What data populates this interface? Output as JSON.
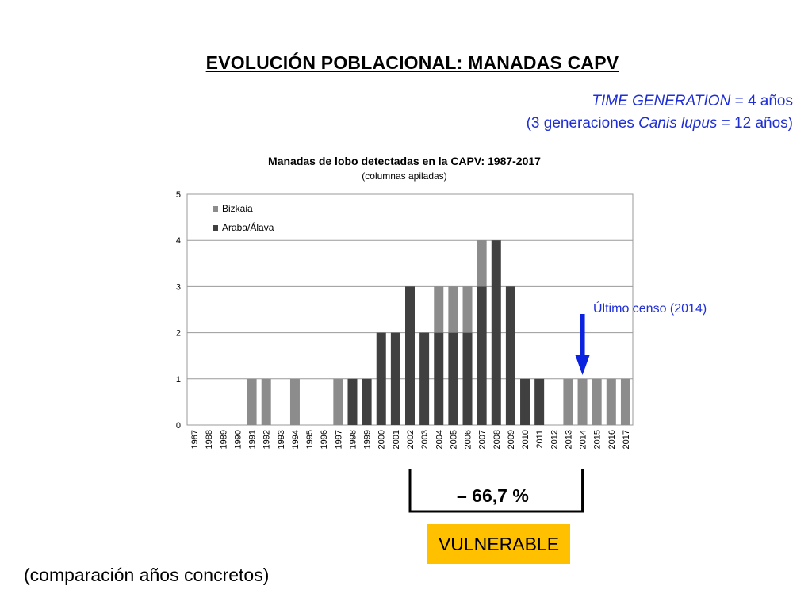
{
  "slide": {
    "title": "EVOLUCIÓN POBLACIONAL: MANADAS CAPV",
    "time_generation_label": "TIME GENERATION",
    "time_generation_value": " = 4 años",
    "generations_prefix": "(3 generaciones ",
    "generations_species": "Canis lupus",
    "generations_suffix": " = 12 años)",
    "change_label": "– 66,7 %",
    "status_label": "VULNERABLE",
    "note": "(comparación años concretos)",
    "census_label": "Último censo (2014)",
    "colors": {
      "bizkaia": "#8c8c8c",
      "araba": "#404040",
      "census_arrow": "#0b22e0",
      "census_text": "#1f2fd6",
      "status_bg": "#ffc000"
    }
  },
  "chart_data": {
    "type": "bar",
    "stacked": true,
    "title": "Manadas de lobo detectadas en la CAPV: 1987-2017",
    "subtitle": "(columnas apiladas)",
    "xlabel": "",
    "ylabel": "",
    "ylim": [
      0,
      5
    ],
    "yticks": [
      0,
      1,
      2,
      3,
      4,
      5
    ],
    "grid": true,
    "legend": "top-left",
    "categories": [
      "1987",
      "1988",
      "1989",
      "1990",
      "1991",
      "1992",
      "1993",
      "1994",
      "1995",
      "1996",
      "1997",
      "1998",
      "1999",
      "2000",
      "2001",
      "2002",
      "2003",
      "2004",
      "2005",
      "2006",
      "2007",
      "2008",
      "2009",
      "2010",
      "2011",
      "2012",
      "2013",
      "2014",
      "2015",
      "2016",
      "2017"
    ],
    "series": [
      {
        "name": "Araba/Álava",
        "color": "#404040",
        "values": [
          0,
          0,
          0,
          0,
          0,
          0,
          0,
          0,
          0,
          0,
          0,
          1,
          1,
          2,
          2,
          3,
          2,
          2,
          2,
          2,
          3,
          4,
          3,
          1,
          1,
          0,
          0,
          0,
          0,
          0,
          0
        ]
      },
      {
        "name": "Bizkaia",
        "color": "#8c8c8c",
        "values": [
          0,
          0,
          0,
          0,
          1,
          1,
          0,
          1,
          0,
          0,
          1,
          0,
          0,
          0,
          0,
          0,
          0,
          1,
          1,
          1,
          1,
          0,
          0,
          0,
          0,
          0,
          1,
          1,
          1,
          1,
          1
        ]
      }
    ],
    "legend_order": [
      "Bizkaia",
      "Araba/Álava"
    ],
    "annotation": {
      "year": "2014",
      "text": "Último censo (2014)"
    },
    "comparison": {
      "from": "2002",
      "to": "2014",
      "change": "– 66,7 %"
    }
  }
}
